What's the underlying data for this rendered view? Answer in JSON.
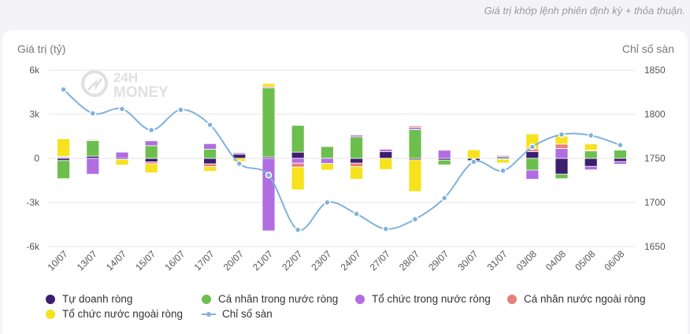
{
  "header_note": "Giá trị khớp lệnh phiên định kỳ + thỏa thuận.",
  "watermark": "24H MONEY",
  "chart_data": {
    "type": "bar",
    "stacked": true,
    "left_axis_title": "Giá trị (tỷ)",
    "right_axis_title": "Chỉ số sàn",
    "ylim": [
      -6000,
      6000
    ],
    "y_ticks": [
      6000,
      3000,
      0,
      -3000,
      -6000
    ],
    "y_tick_labels": [
      "6k",
      "3k",
      "0",
      "-3k",
      "-6k"
    ],
    "y2lim": [
      1650,
      1850
    ],
    "y2_ticks": [
      1850,
      1800,
      1750,
      1700,
      1650
    ],
    "y2_tick_labels": [
      "1850",
      "1800",
      "1750",
      "1700",
      "1650"
    ],
    "categories": [
      "10/07",
      "13/07",
      "14/07",
      "15/07",
      "16/07",
      "17/07",
      "20/07",
      "21/07",
      "22/07",
      "23/07",
      "24/07",
      "27/07",
      "28/07",
      "29/07",
      "30/07",
      "31/07",
      "03/08",
      "04/08",
      "05/08",
      "06/08"
    ],
    "series": [
      {
        "name": "Tự doanh ròng",
        "color": "#3b1f6e",
        "values": [
          -150,
          150,
          -80,
          -250,
          0,
          -380,
          280,
          100,
          420,
          0,
          -330,
          450,
          -100,
          -120,
          -150,
          100,
          460,
          -1080,
          -550,
          -220
        ]
      },
      {
        "name": "Cá nhân trong nước ròng",
        "color": "#6cbf4e",
        "values": [
          -1230,
          1060,
          0,
          860,
          0,
          620,
          0,
          4700,
          1820,
          800,
          1460,
          0,
          1960,
          -320,
          0,
          -70,
          -800,
          -300,
          500,
          560
        ]
      },
      {
        "name": "Tổ chức trong nước ròng",
        "color": "#b06ee0",
        "values": [
          90,
          -1080,
          420,
          330,
          0,
          380,
          100,
          -4930,
          -330,
          -350,
          120,
          160,
          140,
          560,
          0,
          60,
          -620,
          670,
          -230,
          -180
        ]
      },
      {
        "name": "Cá nhân nước ngoài ròng",
        "color": "#e87f7a",
        "values": [
          40,
          60,
          0,
          -130,
          0,
          -180,
          0,
          90,
          -270,
          0,
          -230,
          60,
          100,
          40,
          0,
          60,
          180,
          300,
          60,
          0
        ]
      },
      {
        "name": "Tổ chức nước ngoài ròng",
        "color": "#f6e21d",
        "values": [
          1200,
          0,
          -370,
          -600,
          0,
          -320,
          -220,
          200,
          -1540,
          -450,
          -860,
          -760,
          -2160,
          0,
          580,
          -250,
          1020,
          540,
          420,
          0
        ]
      }
    ],
    "line_series": {
      "name": "Chỉ số sàn",
      "color": "#7fb2dc",
      "values": [
        1828,
        1801,
        1806,
        1782,
        1805,
        1788,
        1744,
        1731,
        1669,
        1700,
        1687,
        1670,
        1681,
        1705,
        1746,
        1736,
        1763,
        1777,
        1776,
        1765
      ]
    },
    "legend_position": "bottom"
  }
}
